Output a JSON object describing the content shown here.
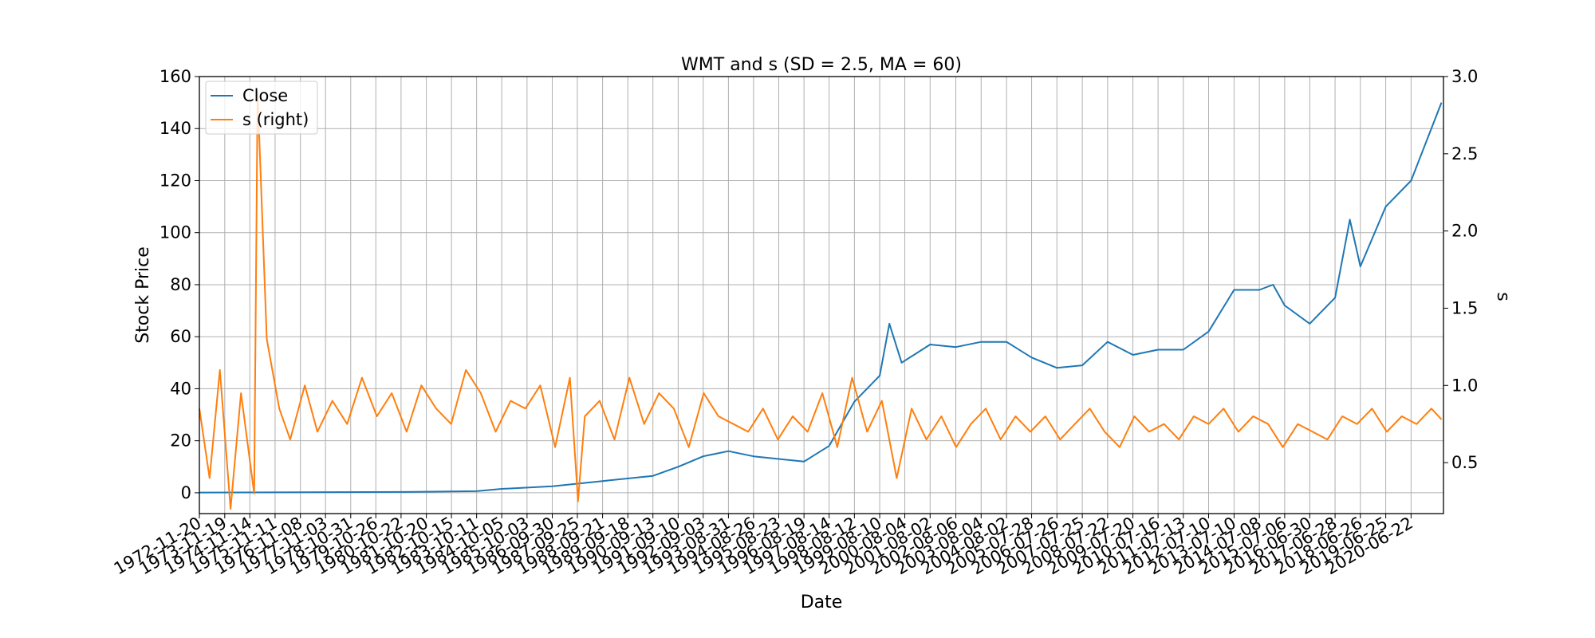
{
  "chart_data": {
    "type": "line",
    "title": "WMT and s (SD = 2.5, MA = 60)",
    "xlabel": "Date",
    "ylabel": "Stock Price",
    "ylabel_right": "s",
    "xlim": [
      "1972-11-20",
      "2021-09-30"
    ],
    "ylim": [
      -8,
      160
    ],
    "ylim_right": [
      0.17,
      3.0
    ],
    "grid": true,
    "legend_position": "upper-left",
    "x_tick_labels": [
      "1972-11-20",
      "1973-11-19",
      "1974-11-14",
      "1975-11-11",
      "1976-11-08",
      "1977-11-03",
      "1978-10-31",
      "1979-10-26",
      "1980-10-22",
      "1981-10-20",
      "1982-10-15",
      "1983-10-11",
      "1984-10-05",
      "1985-10-03",
      "1986-09-30",
      "1987-09-25",
      "1988-09-21",
      "1989-09-18",
      "1990-09-13",
      "1991-09-10",
      "1992-09-03",
      "1993-08-31",
      "1994-08-26",
      "1995-08-23",
      "1996-08-19",
      "1997-08-14",
      "1998-08-12",
      "1999-08-10",
      "2000-08-04",
      "2001-08-02",
      "2002-08-06",
      "2003-08-04",
      "2004-08-02",
      "2005-07-28",
      "2006-07-26",
      "2007-07-25",
      "2008-07-22",
      "2009-07-20",
      "2010-07-16",
      "2011-07-13",
      "2012-07-10",
      "2013-07-10",
      "2014-07-08",
      "2015-07-06",
      "2016-06-30",
      "2017-06-28",
      "2018-06-26",
      "2019-06-25",
      "2020-06-22"
    ],
    "y_ticks_left": [
      0,
      20,
      40,
      60,
      80,
      100,
      120,
      140,
      160
    ],
    "y_ticks_right": [
      0.5,
      1.0,
      1.5,
      2.0,
      2.5,
      3.0
    ],
    "series": [
      {
        "name": "Close",
        "axis": "left",
        "color": "#1f77b4",
        "x": [
          "1972-11-20",
          "1980-10-22",
          "1983-10-11",
          "1984-10-05",
          "1986-09-30",
          "1988-09-21",
          "1990-09-13",
          "1991-09-10",
          "1992-09-03",
          "1993-08-31",
          "1994-08-26",
          "1996-08-19",
          "1997-08-14",
          "1998-08-12",
          "1999-08-10",
          "1999-12-27",
          "2000-06-20",
          "2001-08-02",
          "2002-08-06",
          "2003-08-04",
          "2004-08-02",
          "2005-07-28",
          "2006-07-26",
          "2007-07-25",
          "2008-07-22",
          "2009-07-20",
          "2010-07-16",
          "2011-07-13",
          "2012-07-10",
          "2013-07-10",
          "2014-07-08",
          "2015-01-20",
          "2015-07-06",
          "2016-06-30",
          "2017-06-28",
          "2018-01-26",
          "2018-06-26",
          "2019-06-25",
          "2020-06-22",
          "2021-09-01"
        ],
        "values": [
          0.1,
          0.3,
          0.6,
          1.5,
          2.5,
          4.5,
          6.5,
          10,
          14,
          16,
          14,
          12,
          18,
          35,
          45,
          65,
          50,
          57,
          56,
          58,
          58,
          52,
          48,
          49,
          58,
          53,
          55,
          55,
          62,
          78,
          78,
          80,
          72,
          65,
          75,
          105,
          87,
          110,
          120,
          150
        ]
      },
      {
        "name": "s (right)",
        "axis": "right",
        "color": "#ff7f0e",
        "x": [
          "1972-11-20",
          "1973-04-15",
          "1973-09-10",
          "1974-02-10",
          "1974-07-10",
          "1975-01-15",
          "1975-03-05",
          "1975-07-15",
          "1976-01-10",
          "1976-06-15",
          "1977-01-10",
          "1977-07-10",
          "1978-02-10",
          "1978-09-10",
          "1979-04-10",
          "1979-11-10",
          "1980-06-10",
          "1981-01-10",
          "1981-08-10",
          "1982-03-10",
          "1982-10-10",
          "1983-05-10",
          "1983-12-10",
          "1984-07-10",
          "1985-02-10",
          "1985-09-10",
          "1986-04-10",
          "1986-11-10",
          "1987-06-10",
          "1987-10-05",
          "1988-01-10",
          "1988-08-10",
          "1989-03-10",
          "1989-10-10",
          "1990-05-10",
          "1990-12-10",
          "1991-07-10",
          "1992-02-10",
          "1992-09-10",
          "1993-04-10",
          "1993-11-10",
          "1994-06-10",
          "1995-01-10",
          "1995-08-10",
          "1996-03-10",
          "1996-10-10",
          "1997-05-10",
          "1997-12-10",
          "1998-07-10",
          "1999-02-10",
          "1999-09-10",
          "2000-04-10",
          "2000-11-10",
          "2001-06-10",
          "2002-01-10",
          "2002-08-10",
          "2003-03-10",
          "2003-10-10",
          "2004-05-10",
          "2004-12-10",
          "2005-07-10",
          "2006-02-10",
          "2006-09-10",
          "2007-04-10",
          "2007-11-10",
          "2008-06-10",
          "2009-01-10",
          "2009-08-10",
          "2010-03-10",
          "2010-10-10",
          "2011-05-10",
          "2011-12-10",
          "2012-07-10",
          "2013-02-10",
          "2013-09-10",
          "2014-04-10",
          "2014-11-10",
          "2015-06-10",
          "2016-01-10",
          "2016-08-10",
          "2017-03-10",
          "2017-10-10",
          "2018-05-10",
          "2018-12-10",
          "2019-07-10",
          "2020-02-10",
          "2020-09-10",
          "2021-04-10",
          "2021-09-01"
        ],
        "values": [
          0.85,
          0.4,
          1.1,
          0.2,
          0.95,
          0.3,
          2.9,
          1.3,
          0.85,
          0.65,
          1.0,
          0.7,
          0.9,
          0.75,
          1.05,
          0.8,
          0.95,
          0.7,
          1.0,
          0.85,
          0.75,
          1.1,
          0.95,
          0.7,
          0.9,
          0.85,
          1.0,
          0.6,
          1.05,
          0.25,
          0.8,
          0.9,
          0.65,
          1.05,
          0.75,
          0.95,
          0.85,
          0.6,
          0.95,
          0.8,
          0.75,
          0.7,
          0.85,
          0.65,
          0.8,
          0.7,
          0.95,
          0.6,
          1.05,
          0.7,
          0.9,
          0.4,
          0.85,
          0.65,
          0.8,
          0.6,
          0.75,
          0.85,
          0.65,
          0.8,
          0.7,
          0.8,
          0.65,
          0.75,
          0.85,
          0.7,
          0.6,
          0.8,
          0.7,
          0.75,
          0.65,
          0.8,
          0.75,
          0.85,
          0.7,
          0.8,
          0.75,
          0.6,
          0.75,
          0.7,
          0.65,
          0.8,
          0.75,
          0.85,
          0.7,
          0.8,
          0.75,
          0.85,
          0.78
        ]
      }
    ]
  }
}
